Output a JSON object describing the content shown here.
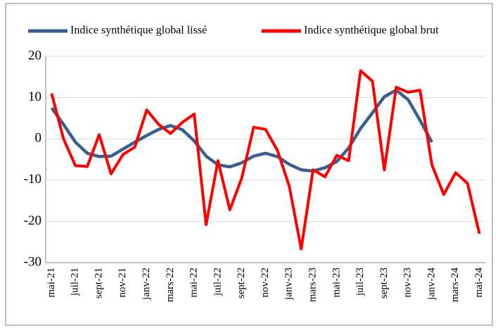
{
  "chart_data": {
    "type": "line",
    "categories": [
      "mai-21",
      null,
      "juil-21",
      null,
      "sept-21",
      null,
      "nov-21",
      null,
      "janv-22",
      null,
      "mars-22",
      null,
      "mai-22",
      null,
      "juil-22",
      null,
      "sept-22",
      null,
      "nov-22",
      null,
      "janv-23",
      null,
      "mars-23",
      null,
      "mai-23",
      null,
      "juil-23",
      null,
      "sept-23",
      null,
      "nov-23",
      null,
      "janv-24",
      null,
      "mars-24",
      null,
      "mai-24"
    ],
    "series": [
      {
        "name": "Indice synthétique global lissé",
        "color": "#3a5f8f",
        "values": [
          7.5,
          3.5,
          -0.8,
          -3.5,
          -4.3,
          -4.2,
          -2.5,
          -0.8,
          0.8,
          2.3,
          3.2,
          2.2,
          -0.5,
          -4.2,
          -6.3,
          -6.8,
          -5.8,
          -4.2,
          -3.5,
          -4.3,
          -6.2,
          -7.5,
          -7.8,
          -7.0,
          -5.5,
          -2.2,
          2.5,
          6.3,
          10.2,
          11.8,
          9.5,
          4.5,
          -0.8,
          null,
          null,
          null,
          null
        ]
      },
      {
        "name": "Indice synthétique global brut",
        "color": "#ff0000",
        "values": [
          11,
          0,
          -6.5,
          -6.7,
          1,
          -8.5,
          -3.8,
          -2,
          7,
          3.5,
          1.3,
          4,
          6,
          -20.8,
          -5.3,
          -17.2,
          -9.5,
          2.8,
          2.3,
          -2.8,
          -11.5,
          -26.7,
          -7.5,
          -9.2,
          -4,
          -5.3,
          16.5,
          14,
          -7.5,
          12.5,
          11.3,
          11.8,
          -6.3,
          -13.5,
          -8.2,
          -10.8,
          -23
        ]
      }
    ],
    "ylim": [
      -30,
      20
    ],
    "yticks": [
      -30,
      -20,
      -10,
      0,
      10,
      20
    ],
    "grid": true
  }
}
